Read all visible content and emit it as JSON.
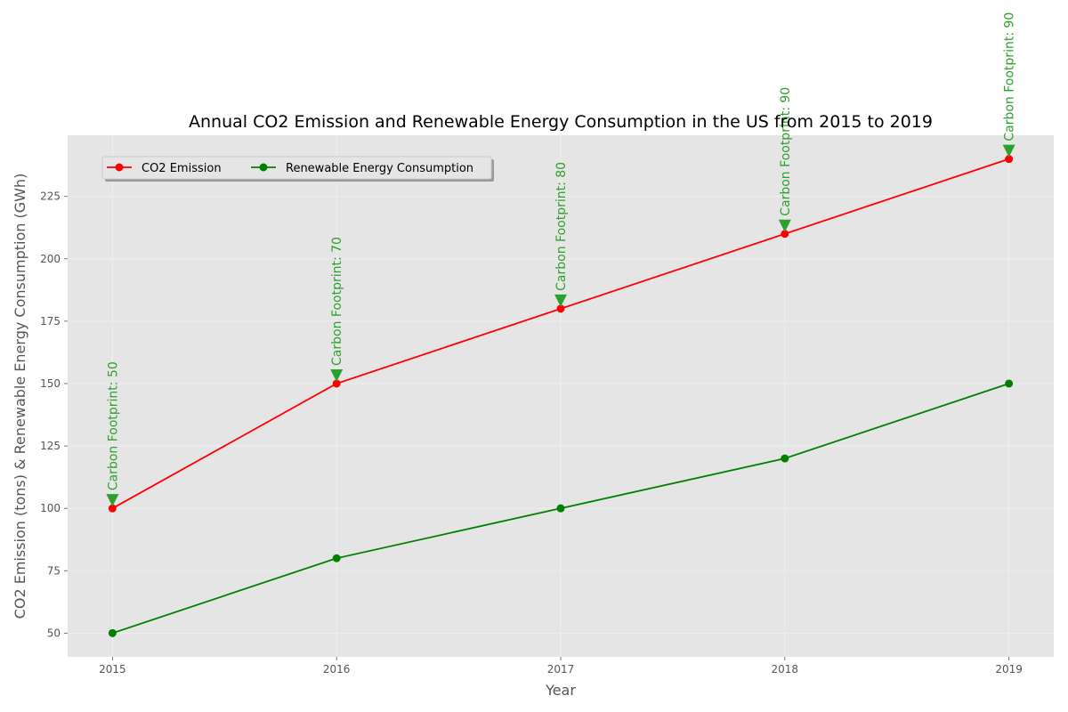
{
  "chart_data": {
    "type": "line",
    "title": "Annual CO2 Emission and Renewable Energy Consumption in the US from 2015 to 2019",
    "xlabel": "Year",
    "ylabel": "CO2 Emission (tons) & Renewable Energy Consumption (GWh)",
    "x": [
      2015,
      2016,
      2017,
      2018,
      2019
    ],
    "x_tick_labels": [
      "2015",
      "2016",
      "2017",
      "2018",
      "2019"
    ],
    "y_ticks": [
      50,
      75,
      100,
      125,
      150,
      175,
      200,
      225
    ],
    "y_tick_labels": [
      "50",
      "75",
      "100",
      "125",
      "150",
      "175",
      "200",
      "225"
    ],
    "xlim": [
      2014.8,
      2019.2
    ],
    "ylim": [
      40.5,
      249.5
    ],
    "grid": true,
    "legend_position": "upper-left",
    "series": [
      {
        "name": "CO2 Emission",
        "values": [
          100,
          150,
          180,
          210,
          240
        ],
        "color": "#ff0000",
        "marker": "circle"
      },
      {
        "name": "Renewable Energy Consumption",
        "values": [
          50,
          80,
          100,
          120,
          150
        ],
        "color": "#008000",
        "marker": "circle"
      }
    ],
    "annotations": [
      {
        "x": 2015,
        "y": 100,
        "text": "Carbon Footprint: 50"
      },
      {
        "x": 2016,
        "y": 150,
        "text": "Carbon Footprint: 70"
      },
      {
        "x": 2017,
        "y": 180,
        "text": "Carbon Footprint: 80"
      },
      {
        "x": 2018,
        "y": 210,
        "text": "Carbon Footprint: 90"
      },
      {
        "x": 2019,
        "y": 240,
        "text": "Carbon Footprint: 90"
      }
    ],
    "annotation_color": "#2ca02c",
    "background_color": "#e5e5e5",
    "grid_color": "#f0f0f0"
  }
}
